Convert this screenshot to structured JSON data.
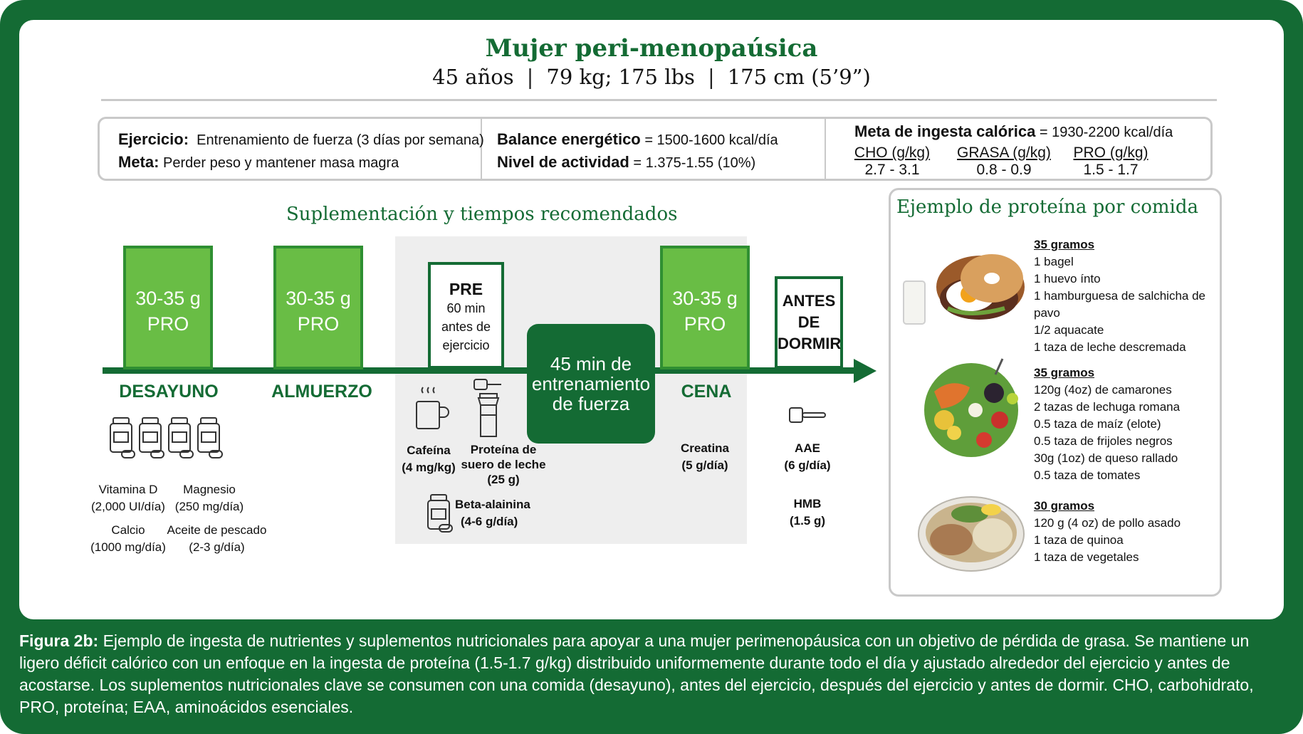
{
  "header": {
    "title": "Mujer peri-menopaúsica",
    "age": "45 años",
    "weight": "79 kg; 175 lbs",
    "height": "175 cm (5’9”)"
  },
  "info": {
    "exercise_label": "Ejercicio:",
    "exercise_value": "Entrenamiento de fuerza (3 días por semana)",
    "goal_label": "Meta:",
    "goal_value": "Perder peso y mantener masa magra",
    "energy_label": "Balance energético",
    "energy_value": "= 1500-1600 kcal/día",
    "activity_label": "Nivel de actividad",
    "activity_value": "= 1.375-1.55 (10%)",
    "calorie_label": "Meta de ingesta calórica",
    "calorie_value": "= 1930-2200 kcal/día",
    "macros": [
      {
        "name": "CHO (g/kg)",
        "value": "2.7 - 3.1"
      },
      {
        "name": "GRASA (g/kg)",
        "value": "0.8 - 0.9"
      },
      {
        "name": "PRO (g/kg)",
        "value": "1.5 - 1.7"
      }
    ]
  },
  "supplementation": {
    "title": "Suplementación y tiempos recomendados",
    "pro_line1": "30-35 g",
    "pro_line2": "PRO",
    "pre": {
      "title": "PRE",
      "l1": "60 min",
      "l2": "antes de",
      "l3": "ejercicio"
    },
    "bedtime": {
      "l1": "ANTES",
      "l2": "DE",
      "l3": "DORMIR"
    },
    "training": {
      "l1": "45 min de",
      "l2": "entrenamiento",
      "l3": "de fuerza"
    },
    "meals": {
      "breakfast": "DESAYUNO",
      "lunch": "ALMUERZO",
      "dinner": "CENA"
    },
    "breakfast_supps": [
      {
        "name": "Vitamina D",
        "dose": "(2,000 UI/día)"
      },
      {
        "name": "Magnesio",
        "dose": "(250 mg/día)"
      },
      {
        "name": "Calcio",
        "dose": "(1000 mg/día)"
      },
      {
        "name": "Aceite de pescado",
        "dose": "(2-3 g/día)"
      }
    ],
    "pre_supps": [
      {
        "name": "Cafeína",
        "dose": "(4 mg/kg)"
      },
      {
        "name": "Proteína de",
        "name2": "suero de leche",
        "dose": "(25 g)"
      },
      {
        "name": "Beta-alainina",
        "dose": "(4-6 g/día)"
      }
    ],
    "dinner_supp": {
      "name": "Creatina",
      "dose": "(5 g/día)"
    },
    "bed_supps": [
      {
        "name": "AAE",
        "dose": "(6 g/día)"
      },
      {
        "name": "HMB",
        "dose": "(1.5 g)"
      }
    ]
  },
  "protein_examples": {
    "title": "Ejemplo de proteína por comida",
    "meals": [
      {
        "header": "35 gramos",
        "items": [
          "1 bagel",
          "1 huevo ínto",
          "1 hamburguesa de salchicha de",
          "pavo",
          "1/2 aquacate",
          "1 taza de leche descremada"
        ]
      },
      {
        "header": "35 gramos",
        "items": [
          "120g (4oz) de camarones",
          "2 tazas de lechuga romana",
          "0.5 taza de maíz (elote)",
          "0.5 taza de frijoles negros",
          "30g (1oz) de queso rallado",
          "0.5 taza de tomates"
        ]
      },
      {
        "header": "30 gramos",
        "items": [
          "120 g (4 oz) de pollo asado",
          "1 taza de quinoa",
          "1 taza de vegetales"
        ]
      }
    ]
  },
  "caption": {
    "label": "Figura 2b:",
    "text": "Ejemplo de ingesta de nutrientes y suplementos nutricionales para apoyar a una mujer perimenopáusica con un objetivo de pérdida de grasa. Se mantiene un ligero déficit calórico con un enfoque en la ingesta de proteína (1.5-1.7 g/kg) distribuido uniformemente durante todo el día y ajustado alrededor del ejercicio y antes de acostarse. Los suplementos nutricionales clave se consumen con una comida (desayuno), antes del ejercicio, después del ejercicio y antes de dormir. CHO, carbohidrato, PRO, proteína; EAA, aminoácidos esenciales."
  },
  "colors": {
    "dark_green": "#146b34",
    "light_green": "#69bd45",
    "gray": "#eeeeee"
  },
  "icons": [
    "supplement-bottle-icon",
    "coffee-mug-icon",
    "shaker-bottle-icon",
    "scoop-icon",
    "bagel-meal-photo",
    "shrimp-salad-photo",
    "chicken-quinoa-photo"
  ]
}
